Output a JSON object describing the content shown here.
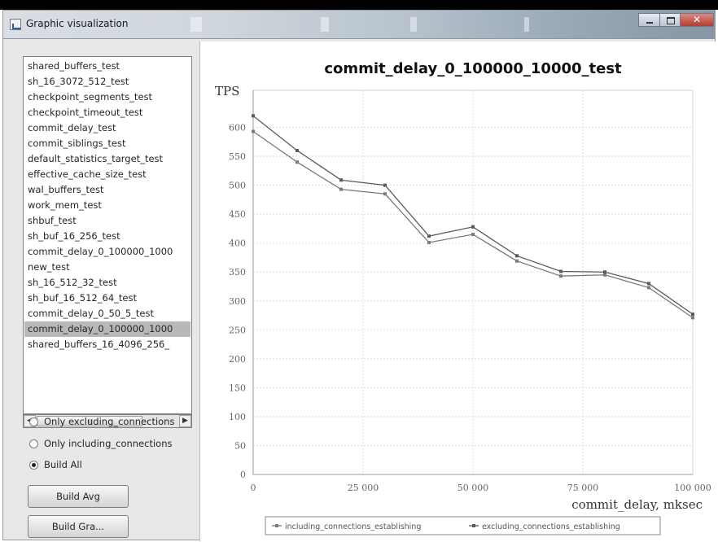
{
  "window": {
    "title": "Graphic visualization",
    "controls": {
      "minimize": "minimize-icon",
      "maximize": "maximize-icon",
      "close": "close-icon"
    }
  },
  "sidebar": {
    "tests": [
      "shared_buffers_test",
      "sh_16_3072_512_test",
      "checkpoint_segments_test",
      "checkpoint_timeout_test",
      "commit_delay_test",
      "commit_siblings_test",
      "default_statistics_target_test",
      "effective_cache_size_test",
      "wal_buffers_test",
      "work_mem_test",
      "shbuf_test",
      "sh_buf_16_256_test",
      "commit_delay_0_100000_1000",
      "new_test",
      "sh_16_512_32_test",
      "sh_buf_16_512_64_test",
      "commit_delay_0_50_5_test",
      "commit_delay_0_100000_1000",
      "shared_buffers_16_4096_256_"
    ],
    "selected_index": 17,
    "radios": [
      {
        "label": "Only excluding_connections",
        "checked": false
      },
      {
        "label": "Only including_connections",
        "checked": false
      },
      {
        "label": "Build All",
        "checked": true
      }
    ],
    "buttons": {
      "build_avg": "Build Avg",
      "build_graph": "Build Gra..."
    }
  },
  "chart_data": {
    "type": "line",
    "title": "commit_delay_0_100000_10000_test",
    "ylabel": "TPS",
    "xlabel": "commit_delay, mksec",
    "xlim": [
      0,
      100000
    ],
    "ylim": [
      0,
      650
    ],
    "x_ticks": [
      0,
      25000,
      50000,
      75000,
      100000
    ],
    "x_tick_labels": [
      "0",
      "25 000",
      "50 000",
      "75 000",
      "100 000"
    ],
    "y_ticks": [
      0,
      50,
      100,
      150,
      200,
      250,
      300,
      350,
      400,
      450,
      500,
      550,
      600
    ],
    "y_tick_labels": [
      "0",
      "50",
      "100",
      "150",
      "200",
      "250",
      "300",
      "350",
      "400",
      "450",
      "500",
      "550",
      "600"
    ],
    "grid": true,
    "legend_position": "bottom",
    "x": [
      0,
      10000,
      20000,
      30000,
      40000,
      50000,
      60000,
      70000,
      80000,
      90000,
      100000
    ],
    "series": [
      {
        "name": "including_connections_establishing",
        "color": "#7a7a7a",
        "values": [
          593,
          540,
          493,
          485,
          401,
          415,
          369,
          343,
          345,
          323,
          271
        ]
      },
      {
        "name": "excluding_connections_establishing",
        "color": "#5a5a5a",
        "values": [
          620,
          560,
          509,
          500,
          412,
          428,
          378,
          351,
          350,
          330,
          277
        ]
      }
    ]
  }
}
